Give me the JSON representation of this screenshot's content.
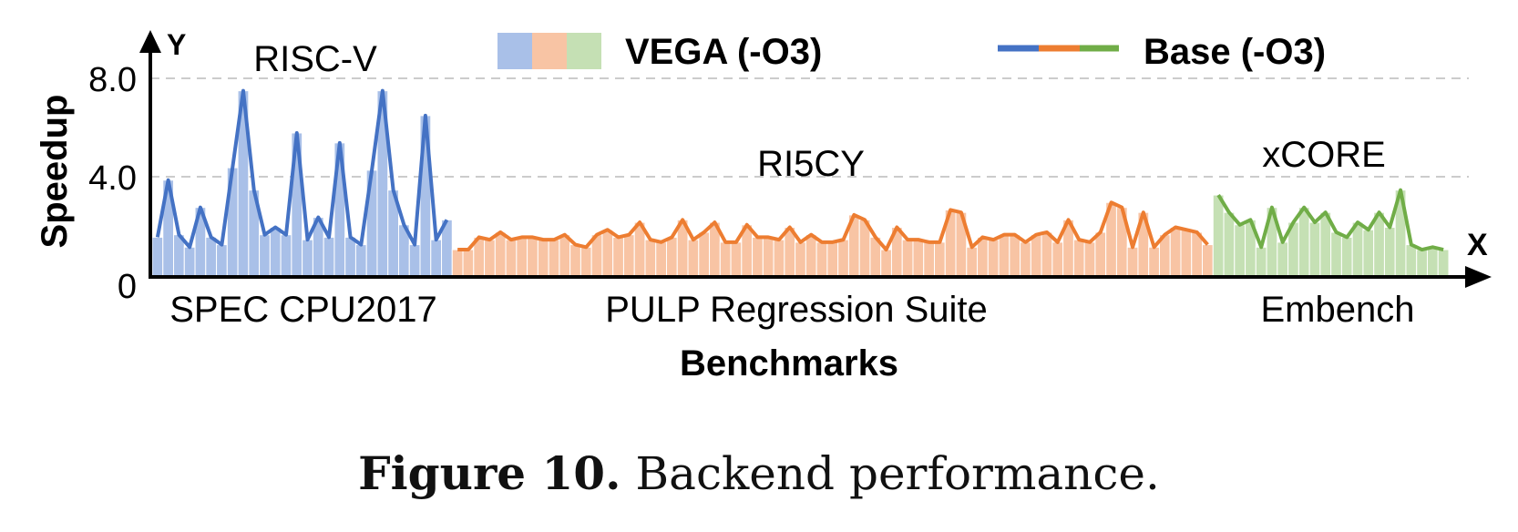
{
  "chart_data": {
    "type": "bar",
    "title": "",
    "xlabel": "Benchmarks",
    "ylabel": "Speedup",
    "x_axis_letter": "X",
    "y_axis_letter": "Y",
    "ylim": [
      0,
      8.0
    ],
    "y_ticks": [
      "0",
      "4.0",
      "8.0"
    ],
    "grid": "dashed horizontal at 4.0 and 8.0",
    "legend": {
      "placement": "top-center",
      "bar_entry": "VEGA (-O3)",
      "line_entry": "Base (-O3)"
    },
    "colors": {
      "spec_bar": "#a9c0e8",
      "spec_line": "#4472c4",
      "pulp_bar": "#f8c4a4",
      "pulp_line": "#ed7d31",
      "emb_bar": "#c5e0b4",
      "emb_line": "#70ad47",
      "axis": "#000000",
      "grid": "#cccccc"
    },
    "groups": [
      {
        "target": "RISC-V",
        "suite": "SPEC CPU2017",
        "values": [
          1.6,
          3.9,
          1.7,
          1.2,
          2.8,
          1.6,
          1.3,
          4.4,
          7.5,
          3.5,
          1.7,
          2.0,
          1.7,
          5.8,
          1.5,
          2.4,
          1.6,
          5.4,
          1.6,
          1.3,
          4.3,
          7.5,
          3.5,
          2.1,
          1.3,
          6.5,
          1.5,
          2.3
        ]
      },
      {
        "target": "RI5CY",
        "suite": "PULP Regression Suite",
        "values": [
          1.1,
          1.1,
          1.6,
          1.5,
          1.8,
          1.5,
          1.6,
          1.6,
          1.5,
          1.5,
          1.7,
          1.3,
          1.2,
          1.7,
          1.9,
          1.6,
          1.7,
          2.2,
          1.5,
          1.4,
          1.6,
          2.3,
          1.5,
          1.8,
          2.2,
          1.4,
          1.4,
          2.1,
          1.6,
          1.6,
          1.5,
          2.0,
          1.4,
          1.7,
          1.4,
          1.4,
          1.5,
          2.5,
          2.3,
          1.6,
          1.1,
          2.0,
          1.5,
          1.5,
          1.4,
          1.4,
          2.7,
          2.6,
          1.2,
          1.6,
          1.5,
          1.7,
          1.7,
          1.4,
          1.7,
          1.8,
          1.4,
          2.3,
          1.5,
          1.4,
          1.8,
          3.0,
          2.8,
          1.2,
          2.6,
          1.2,
          1.7,
          2.0,
          1.9,
          1.8,
          1.3
        ]
      },
      {
        "target": "xCORE",
        "suite": "Embench",
        "values": [
          3.3,
          2.6,
          2.1,
          2.3,
          1.2,
          2.8,
          1.4,
          2.2,
          2.8,
          2.2,
          2.6,
          1.8,
          1.6,
          2.2,
          1.9,
          2.6,
          2.0,
          3.5,
          1.3,
          1.1,
          1.2,
          1.1
        ]
      }
    ]
  },
  "caption": {
    "label": "Figure 10.",
    "text": " Backend performance."
  }
}
